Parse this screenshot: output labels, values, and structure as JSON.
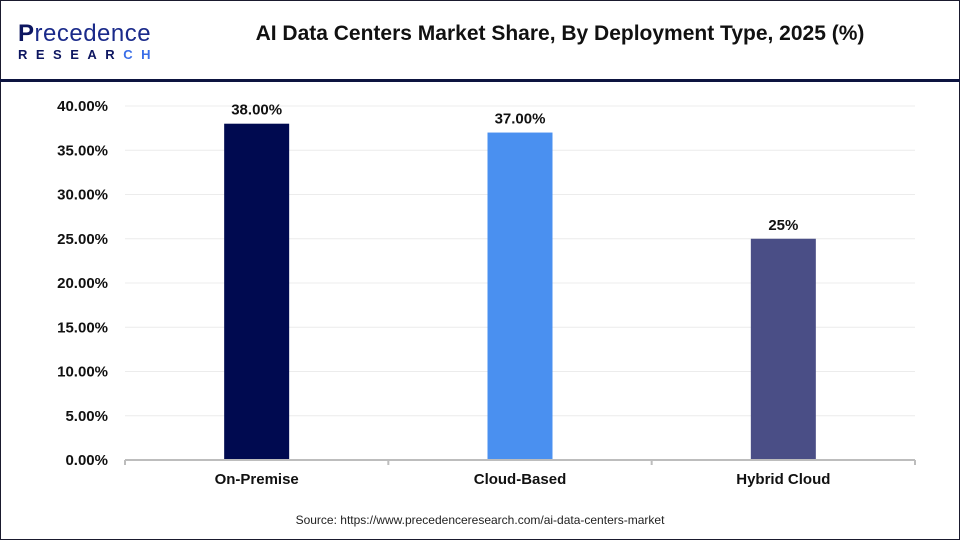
{
  "logo": {
    "line1_first": "P",
    "line1_rest": "recedence",
    "line2_main": "RESEAR",
    "line2_accent": "CH"
  },
  "title": "AI Data Centers Market Share, By Deployment Type, 2025 (%)",
  "source": "Source: https://www.precedenceresearch.com/ai-data-centers-market",
  "chart_data": {
    "type": "bar",
    "title": "AI Data Centers Market Share, By Deployment Type, 2025 (%)",
    "categories": [
      "On-Premise",
      "Cloud-Based",
      "Hybrid Cloud"
    ],
    "values": [
      38,
      37,
      25
    ],
    "data_labels": [
      "38.00%",
      "37.00%",
      "25%"
    ],
    "colors": [
      "#000a50",
      "#4a90f0",
      "#4a4e86"
    ],
    "ylim": [
      0,
      40
    ],
    "yticks": [
      0,
      5,
      10,
      15,
      20,
      25,
      30,
      35,
      40
    ],
    "ytick_labels": [
      "0.00%",
      "5.00%",
      "10.00%",
      "15.00%",
      "20.00%",
      "25.00%",
      "30.00%",
      "35.00%",
      "40.00%"
    ],
    "grid": true,
    "xlabel": "",
    "ylabel": ""
  }
}
